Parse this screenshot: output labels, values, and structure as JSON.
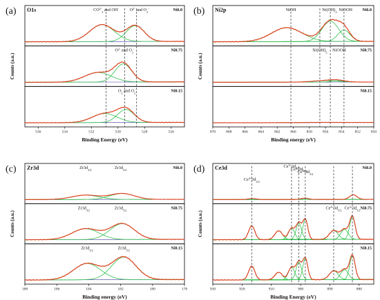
{
  "colors": {
    "envelope": "#d9342b",
    "raw": "#e7781b",
    "component": "#2fbf4a",
    "background": "#3a3aa0",
    "axis": "#000000",
    "dash": "#333333"
  },
  "chart_data": [
    {
      "panel_label": "(a)",
      "title": "O1s",
      "type": "line",
      "xlabel": "Binding Energy (eV)",
      "ylabel": "Counts (a.u.)",
      "xlim": [
        537,
        525
      ],
      "xticks": [
        536,
        534,
        532,
        530,
        528,
        526
      ],
      "stacks": [
        {
          "sample": "Ni6.0",
          "scale": 0.85,
          "components": [
            {
              "center": 531.2,
              "fwhm": 2.2,
              "amp": 0.75
            },
            {
              "center": 528.7,
              "fwhm": 1.6,
              "amp": 0.7
            }
          ],
          "annotations": [
            {
              "text": "CO",
              "sup": "2-",
              "tail": "3",
              "after": " and OH",
              "sup2": "-",
              "at": 530.9
            },
            {
              "text": "O",
              "sup": "2-",
              "after": " and O",
              "sub2": "2",
              "sup2": "-",
              "at": 528.4
            }
          ]
        },
        {
          "sample": "Ni0.75",
          "scale": 0.8,
          "components": [
            {
              "center": 531.5,
              "fwhm": 2.4,
              "amp": 0.45
            },
            {
              "center": 529.6,
              "fwhm": 1.5,
              "amp": 0.85
            }
          ],
          "annotations": [
            {
              "text": "O",
              "sup": "2-",
              "after": " and O",
              "sub2": "2",
              "sup2": "-",
              "at": 529.5
            }
          ]
        },
        {
          "sample": "Ni0.15",
          "scale": 0.75,
          "components": [
            {
              "center": 531.0,
              "fwhm": 2.2,
              "amp": 0.45
            },
            {
              "center": 529.4,
              "fwhm": 1.5,
              "amp": 0.65
            }
          ],
          "annotations": [
            {
              "text": "O",
              "sub": "2",
              "after": " and O",
              "sub2": "2",
              "sup2": "-",
              "at": 529.3
            }
          ]
        }
      ],
      "dashed_lines_at": [
        530.9,
        529.5,
        528.6
      ]
    },
    {
      "panel_label": "(b)",
      "title": "Ni2p",
      "type": "line",
      "xlabel": "Binding energy (eV)",
      "ylabel": "Counts (a.u.)",
      "xlim": [
        870,
        850
      ],
      "xticks": [
        870,
        868,
        866,
        864,
        862,
        860,
        858,
        856,
        854,
        852,
        850
      ],
      "stacks": [
        {
          "sample": "Ni6.0",
          "scale": 0.95,
          "components": [
            {
              "center": 860.8,
              "fwhm": 4.5,
              "amp": 0.55
            },
            {
              "center": 855.4,
              "fwhm": 2.5,
              "amp": 0.8
            },
            {
              "center": 853.7,
              "fwhm": 1.8,
              "amp": 0.45
            }
          ],
          "annotations": [
            {
              "text": "NiOH",
              "at": 860.3
            },
            {
              "text": "Ni(OH)",
              "sub": "2",
              "at": 855.5
            },
            {
              "text": "NiOOH",
              "at": 853.5
            }
          ]
        },
        {
          "sample": "Ni0.75",
          "scale": 0.5,
          "components": [
            {
              "center": 856.0,
              "fwhm": 3.5,
              "amp": 0.12
            },
            {
              "center": 854.5,
              "fwhm": 2.0,
              "amp": 0.1
            }
          ],
          "annotations": [
            {
              "text": "Ni(OH)",
              "sub": "2",
              "at": 856.7
            },
            {
              "text": "NiOOH",
              "at": 854.3
            }
          ]
        },
        {
          "sample": "Ni0.15",
          "scale": 0.5,
          "components": [
            {
              "center": 856.0,
              "fwhm": 3.5,
              "amp": 0.015
            }
          ],
          "annotations": []
        }
      ],
      "dashed_lines_at": [
        860.3,
        856.7,
        855.4,
        853.7
      ]
    },
    {
      "panel_label": "(c)",
      "title": "Zr3d",
      "type": "line",
      "xlabel": "Binding energy (eV)",
      "ylabel": "Counts (a.u.)",
      "xlim": [
        188,
        178
      ],
      "xticks": [
        188,
        186,
        184,
        182,
        180,
        178
      ],
      "stacks": [
        {
          "sample": "Ni6.0",
          "scale": 0.3,
          "components": [
            {
              "center": 184.2,
              "fwhm": 2.0,
              "amp": 0.55
            },
            {
              "center": 181.9,
              "fwhm": 1.8,
              "amp": 0.75
            }
          ],
          "annotations": [
            {
              "text": "Zr3d",
              "sub": "3/2",
              "at": 184.2
            },
            {
              "text": "Zr3d",
              "sub": "5/2",
              "at": 182.0
            }
          ]
        },
        {
          "sample": "Ni0.75",
          "scale": 0.75,
          "components": [
            {
              "center": 184.2,
              "fwhm": 2.0,
              "amp": 0.55
            },
            {
              "center": 181.9,
              "fwhm": 1.8,
              "amp": 0.8
            }
          ],
          "annotations": [
            {
              "text": "Zr3d",
              "sub": "3/2",
              "at": 184.3
            },
            {
              "text": "Zr3d",
              "sub": "5/2",
              "at": 182.0
            }
          ]
        },
        {
          "sample": "Ni0.15",
          "scale": 0.95,
          "components": [
            {
              "center": 184.1,
              "fwhm": 2.0,
              "amp": 0.65
            },
            {
              "center": 181.8,
              "fwhm": 1.8,
              "amp": 0.9
            }
          ],
          "annotations": [
            {
              "text": "Zr3d",
              "sub": "3/2",
              "at": 184.1
            },
            {
              "text": "Zr3d",
              "sub": "5/2",
              "at": 181.8
            }
          ]
        }
      ],
      "dashed_lines_at": []
    },
    {
      "panel_label": "(d)",
      "title": "Ce3d",
      "type": "line",
      "xlabel": "Binding Energy (eV)",
      "ylabel": "Counts (a.u.)",
      "xlim": [
        930,
        875
      ],
      "xticks": [
        930,
        920,
        910,
        900,
        890,
        880
      ],
      "stacks": [
        {
          "sample": "Ni6.0",
          "scale": 0.25,
          "components": [
            {
              "center": 916.5,
              "fwhm": 3.0,
              "amp": 0.15
            },
            {
              "center": 898.5,
              "fwhm": 3.0,
              "amp": 0.2
            },
            {
              "center": 882.0,
              "fwhm": 3.0,
              "amp": 0.7
            }
          ],
          "annotations": [
            {
              "text": "Ce",
              "sup": "4+",
              "after": "3d",
              "sub2": "3/2",
              "at": 916.7
            },
            {
              "text": "Ce",
              "sup": "3+",
              "after": "3d",
              "sub2": "3/2",
              "at": 903.1
            },
            {
              "text": "Ce",
              "sup": "4+",
              "after": "3d",
              "sub2": "3/2",
              "at": 900.6
            },
            {
              "text": "Ce",
              "sup": "4+",
              "after": "3d",
              "sub2": "3/2",
              "at": 898.4
            }
          ]
        },
        {
          "sample": "Ni0.75",
          "scale": 0.95,
          "components": [
            {
              "center": 916.7,
              "fwhm": 2.5,
              "amp": 0.55
            },
            {
              "center": 907.5,
              "fwhm": 3.0,
              "amp": 0.35
            },
            {
              "center": 903.1,
              "fwhm": 2.5,
              "amp": 0.45
            },
            {
              "center": 900.6,
              "fwhm": 2.2,
              "amp": 0.65
            },
            {
              "center": 898.4,
              "fwhm": 2.0,
              "amp": 0.8
            },
            {
              "center": 888.7,
              "fwhm": 3.5,
              "amp": 0.35
            },
            {
              "center": 885.0,
              "fwhm": 3.0,
              "amp": 0.4
            },
            {
              "center": 882.3,
              "fwhm": 2.2,
              "amp": 0.9
            }
          ],
          "annotations": [
            {
              "text": "Ce",
              "sup": "4+",
              "after": "3d",
              "sub2": "5/2",
              "at": 888.7
            },
            {
              "text": "Ce",
              "sup": "3+",
              "after": "3d",
              "sub2": "5/2",
              "at": 882.3
            }
          ]
        },
        {
          "sample": "Ni0.15",
          "scale": 0.95,
          "components": [
            {
              "center": 916.7,
              "fwhm": 2.5,
              "amp": 0.55
            },
            {
              "center": 907.5,
              "fwhm": 3.0,
              "amp": 0.3
            },
            {
              "center": 903.1,
              "fwhm": 2.5,
              "amp": 0.5
            },
            {
              "center": 900.6,
              "fwhm": 2.2,
              "amp": 0.7
            },
            {
              "center": 898.4,
              "fwhm": 2.0,
              "amp": 0.85
            },
            {
              "center": 888.7,
              "fwhm": 3.5,
              "amp": 0.35
            },
            {
              "center": 885.0,
              "fwhm": 3.0,
              "amp": 0.4
            },
            {
              "center": 882.3,
              "fwhm": 2.2,
              "amp": 0.95
            }
          ],
          "annotations": []
        }
      ],
      "dashed_lines_at": [
        916.7,
        903.1,
        900.6,
        898.4,
        888.7,
        882.3
      ]
    }
  ]
}
